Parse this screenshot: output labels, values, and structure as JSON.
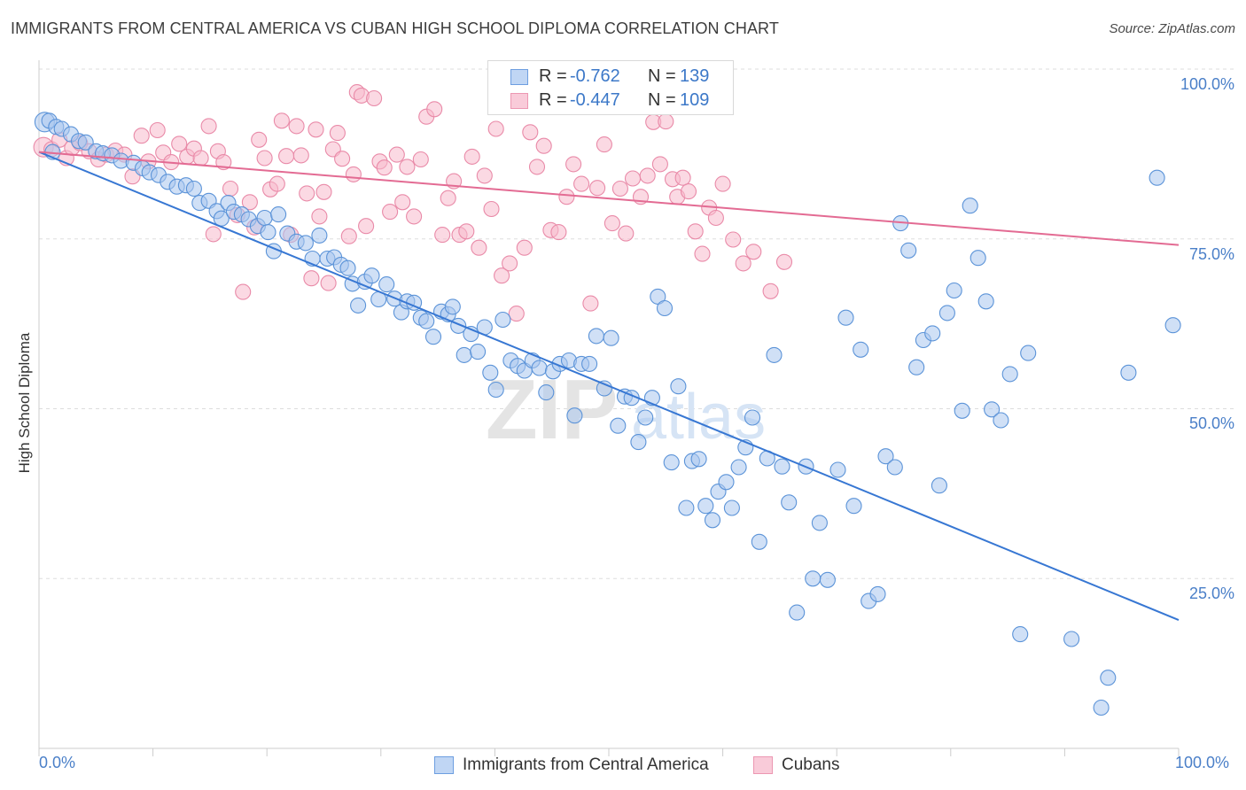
{
  "title": "IMMIGRANTS FROM CENTRAL AMERICA VS CUBAN HIGH SCHOOL DIPLOMA CORRELATION CHART",
  "source": "Source: ZipAtlas.com",
  "watermark": {
    "zip": "ZIP",
    "atlas": "atlas"
  },
  "legend": {
    "r_label": "R =",
    "n_label": "N =",
    "series": [
      {
        "name": "Immigrants from Central America",
        "r": "-0.762",
        "n": "139"
      },
      {
        "name": "Cubans",
        "r": "-0.447",
        "n": "109"
      }
    ]
  },
  "colors": {
    "blue_fill": "#a9c6ee",
    "blue_stroke": "#5b93d8",
    "blue_line": "#3777d3",
    "pink_fill": "#f7b9cc",
    "pink_stroke": "#e98aa8",
    "pink_line": "#e36b93",
    "grid": "#dddddd",
    "label": "#4a7fc8"
  },
  "chart_data": {
    "type": "scatter",
    "title": "IMMIGRANTS FROM CENTRAL AMERICA VS CUBAN HIGH SCHOOL DIPLOMA CORRELATION CHART",
    "xlabel": "",
    "ylabel": "High School Diploma",
    "xlim": [
      0,
      100
    ],
    "ylim": [
      0,
      100
    ],
    "x_tick_labels": [
      "0.0%",
      "100.0%"
    ],
    "y_ticks": [
      {
        "value": 100,
        "label": "100.0%"
      },
      {
        "value": 75,
        "label": "75.0%"
      },
      {
        "value": 50,
        "label": "50.0%"
      },
      {
        "value": 25,
        "label": "25.0%"
      }
    ],
    "series": [
      {
        "name": "Immigrants from Central America",
        "color": "blue",
        "trend": {
          "x0": 0,
          "y0": 87.8,
          "x1": 100,
          "y1": 18.9
        },
        "points": [
          [
            0.5,
            92.2
          ],
          [
            0.9,
            92.4
          ],
          [
            1.5,
            91.5
          ],
          [
            2.0,
            91.2
          ],
          [
            2.8,
            90.4
          ],
          [
            1.2,
            87.8
          ],
          [
            3.5,
            89.4
          ],
          [
            4.1,
            89.2
          ],
          [
            5.0,
            87.9
          ],
          [
            5.6,
            87.6
          ],
          [
            6.4,
            87.3
          ],
          [
            7.2,
            86.5
          ],
          [
            8.3,
            86.2
          ],
          [
            9.1,
            85.4
          ],
          [
            9.7,
            84.8
          ],
          [
            10.5,
            84.4
          ],
          [
            11.3,
            83.4
          ],
          [
            12.1,
            82.7
          ],
          [
            12.9,
            82.9
          ],
          [
            13.6,
            82.4
          ],
          [
            14.1,
            80.3
          ],
          [
            14.9,
            80.6
          ],
          [
            15.6,
            79.1
          ],
          [
            16.0,
            78.0
          ],
          [
            16.6,
            80.3
          ],
          [
            17.1,
            79.0
          ],
          [
            17.8,
            78.6
          ],
          [
            18.4,
            77.9
          ],
          [
            19.2,
            76.9
          ],
          [
            19.8,
            78.1
          ],
          [
            20.1,
            76.0
          ],
          [
            20.6,
            73.2
          ],
          [
            21.0,
            78.6
          ],
          [
            21.8,
            75.8
          ],
          [
            22.6,
            74.6
          ],
          [
            23.4,
            74.4
          ],
          [
            24.0,
            72.1
          ],
          [
            24.6,
            75.5
          ],
          [
            25.3,
            72.1
          ],
          [
            25.9,
            72.3
          ],
          [
            26.5,
            71.2
          ],
          [
            27.1,
            70.7
          ],
          [
            27.5,
            68.4
          ],
          [
            28.0,
            65.2
          ],
          [
            28.6,
            68.7
          ],
          [
            29.2,
            69.6
          ],
          [
            29.8,
            66.1
          ],
          [
            30.5,
            68.3
          ],
          [
            31.2,
            66.2
          ],
          [
            31.8,
            64.2
          ],
          [
            32.3,
            65.8
          ],
          [
            32.9,
            65.6
          ],
          [
            33.5,
            63.4
          ],
          [
            34.0,
            62.9
          ],
          [
            34.6,
            60.6
          ],
          [
            35.3,
            64.3
          ],
          [
            35.9,
            63.9
          ],
          [
            36.3,
            65.0
          ],
          [
            36.8,
            62.2
          ],
          [
            37.3,
            57.9
          ],
          [
            37.9,
            61.0
          ],
          [
            38.5,
            58.4
          ],
          [
            39.1,
            62.0
          ],
          [
            39.6,
            55.3
          ],
          [
            40.1,
            52.8
          ],
          [
            40.7,
            63.1
          ],
          [
            41.4,
            57.1
          ],
          [
            42.0,
            56.3
          ],
          [
            42.6,
            55.6
          ],
          [
            43.3,
            57.1
          ],
          [
            43.9,
            56.0
          ],
          [
            44.5,
            52.4
          ],
          [
            45.1,
            55.5
          ],
          [
            45.7,
            56.6
          ],
          [
            46.5,
            57.1
          ],
          [
            47.0,
            49.0
          ],
          [
            47.6,
            56.6
          ],
          [
            48.3,
            56.6
          ],
          [
            48.9,
            60.7
          ],
          [
            49.6,
            53.0
          ],
          [
            50.2,
            60.4
          ],
          [
            50.8,
            47.5
          ],
          [
            51.4,
            51.8
          ],
          [
            52.0,
            51.6
          ],
          [
            52.6,
            45.1
          ],
          [
            53.2,
            48.7
          ],
          [
            53.8,
            51.6
          ],
          [
            54.3,
            66.5
          ],
          [
            54.9,
            64.8
          ],
          [
            55.5,
            42.1
          ],
          [
            56.1,
            53.3
          ],
          [
            56.8,
            35.4
          ],
          [
            57.3,
            42.3
          ],
          [
            57.9,
            42.6
          ],
          [
            58.5,
            35.7
          ],
          [
            59.1,
            33.6
          ],
          [
            59.6,
            37.8
          ],
          [
            60.3,
            39.2
          ],
          [
            60.8,
            35.4
          ],
          [
            61.4,
            41.4
          ],
          [
            62.0,
            44.3
          ],
          [
            62.6,
            48.7
          ],
          [
            63.2,
            30.4
          ],
          [
            63.9,
            42.7
          ],
          [
            64.5,
            57.9
          ],
          [
            65.2,
            41.5
          ],
          [
            65.8,
            36.2
          ],
          [
            66.5,
            20.0
          ],
          [
            67.3,
            41.5
          ],
          [
            67.9,
            25.0
          ],
          [
            68.5,
            33.2
          ],
          [
            69.2,
            24.8
          ],
          [
            70.1,
            41.0
          ],
          [
            70.8,
            63.4
          ],
          [
            71.5,
            35.7
          ],
          [
            72.1,
            58.7
          ],
          [
            72.8,
            21.7
          ],
          [
            73.6,
            22.7
          ],
          [
            74.3,
            43.0
          ],
          [
            75.1,
            41.4
          ],
          [
            75.6,
            77.3
          ],
          [
            76.3,
            73.3
          ],
          [
            77.0,
            56.1
          ],
          [
            77.6,
            60.1
          ],
          [
            78.4,
            61.1
          ],
          [
            79.0,
            38.7
          ],
          [
            79.7,
            64.1
          ],
          [
            80.3,
            67.4
          ],
          [
            81.0,
            49.7
          ],
          [
            81.7,
            79.9
          ],
          [
            82.4,
            72.2
          ],
          [
            83.1,
            65.8
          ],
          [
            83.6,
            49.9
          ],
          [
            84.4,
            48.3
          ],
          [
            85.2,
            55.1
          ],
          [
            86.1,
            16.8
          ],
          [
            86.8,
            58.2
          ],
          [
            90.6,
            16.1
          ],
          [
            95.6,
            55.3
          ],
          [
            93.2,
            6.0
          ],
          [
            93.8,
            10.4
          ],
          [
            99.5,
            62.3
          ],
          [
            98.1,
            84.0
          ]
        ]
      },
      {
        "name": "Cubans",
        "color": "pink",
        "trend": {
          "x0": 0,
          "y0": 87.8,
          "x1": 100,
          "y1": 74.1
        },
        "points": [
          [
            0.4,
            88.5
          ],
          [
            1.1,
            88.2
          ],
          [
            1.8,
            89.6
          ],
          [
            2.4,
            86.9
          ],
          [
            2.9,
            88.4
          ],
          [
            3.6,
            89.1
          ],
          [
            4.4,
            87.9
          ],
          [
            5.2,
            86.7
          ],
          [
            5.9,
            87.4
          ],
          [
            6.7,
            88.0
          ],
          [
            7.5,
            87.4
          ],
          [
            8.2,
            84.2
          ],
          [
            9.0,
            90.2
          ],
          [
            9.6,
            86.4
          ],
          [
            10.4,
            91.0
          ],
          [
            10.9,
            87.7
          ],
          [
            11.6,
            86.3
          ],
          [
            12.3,
            89.0
          ],
          [
            13.0,
            87.1
          ],
          [
            13.6,
            88.3
          ],
          [
            14.2,
            86.9
          ],
          [
            14.9,
            91.6
          ],
          [
            15.3,
            75.7
          ],
          [
            15.7,
            87.9
          ],
          [
            16.2,
            86.3
          ],
          [
            16.8,
            82.4
          ],
          [
            17.4,
            78.5
          ],
          [
            17.9,
            67.2
          ],
          [
            18.5,
            80.4
          ],
          [
            18.9,
            76.7
          ],
          [
            19.3,
            89.6
          ],
          [
            19.8,
            86.9
          ],
          [
            20.3,
            82.3
          ],
          [
            20.9,
            83.1
          ],
          [
            21.3,
            92.4
          ],
          [
            21.7,
            87.2
          ],
          [
            22.1,
            75.6
          ],
          [
            22.6,
            91.6
          ],
          [
            23.0,
            87.3
          ],
          [
            23.5,
            81.7
          ],
          [
            23.9,
            69.2
          ],
          [
            24.3,
            91.1
          ],
          [
            24.6,
            78.3
          ],
          [
            25.0,
            81.9
          ],
          [
            25.4,
            68.5
          ],
          [
            25.8,
            88.2
          ],
          [
            26.2,
            90.6
          ],
          [
            26.6,
            86.8
          ],
          [
            27.2,
            75.4
          ],
          [
            27.6,
            84.5
          ],
          [
            27.9,
            96.6
          ],
          [
            28.3,
            96.1
          ],
          [
            28.7,
            76.9
          ],
          [
            29.4,
            95.7
          ],
          [
            29.9,
            86.4
          ],
          [
            30.3,
            85.5
          ],
          [
            30.8,
            79.0
          ],
          [
            31.4,
            87.4
          ],
          [
            31.9,
            80.4
          ],
          [
            32.3,
            85.6
          ],
          [
            32.9,
            78.3
          ],
          [
            33.5,
            86.7
          ],
          [
            34.0,
            93.0
          ],
          [
            34.7,
            94.1
          ],
          [
            35.4,
            75.6
          ],
          [
            35.9,
            81.0
          ],
          [
            36.4,
            83.5
          ],
          [
            36.9,
            75.6
          ],
          [
            37.5,
            76.1
          ],
          [
            38.0,
            87.1
          ],
          [
            38.6,
            73.7
          ],
          [
            39.1,
            84.3
          ],
          [
            39.7,
            79.4
          ],
          [
            40.1,
            91.2
          ],
          [
            40.6,
            69.6
          ],
          [
            41.3,
            71.4
          ],
          [
            41.9,
            64.0
          ],
          [
            42.6,
            73.7
          ],
          [
            43.1,
            90.7
          ],
          [
            43.7,
            85.6
          ],
          [
            44.3,
            88.7
          ],
          [
            44.9,
            76.3
          ],
          [
            45.6,
            76.0
          ],
          [
            46.3,
            81.2
          ],
          [
            46.9,
            86.0
          ],
          [
            47.6,
            83.1
          ],
          [
            48.4,
            65.5
          ],
          [
            49.0,
            82.5
          ],
          [
            49.6,
            88.9
          ],
          [
            50.3,
            77.3
          ],
          [
            51.0,
            82.4
          ],
          [
            51.5,
            75.8
          ],
          [
            52.1,
            83.9
          ],
          [
            52.8,
            81.2
          ],
          [
            53.4,
            84.3
          ],
          [
            53.9,
            92.2
          ],
          [
            54.5,
            86.0
          ],
          [
            55.0,
            92.3
          ],
          [
            55.6,
            83.8
          ],
          [
            56.0,
            81.2
          ],
          [
            56.5,
            84.0
          ],
          [
            57.0,
            82.0
          ],
          [
            57.6,
            76.1
          ],
          [
            58.2,
            72.8
          ],
          [
            58.8,
            79.6
          ],
          [
            59.4,
            78.1
          ],
          [
            60.0,
            83.1
          ],
          [
            60.9,
            74.9
          ],
          [
            61.8,
            71.4
          ],
          [
            62.7,
            73.1
          ],
          [
            64.2,
            67.3
          ],
          [
            65.4,
            71.6
          ]
        ]
      }
    ]
  }
}
